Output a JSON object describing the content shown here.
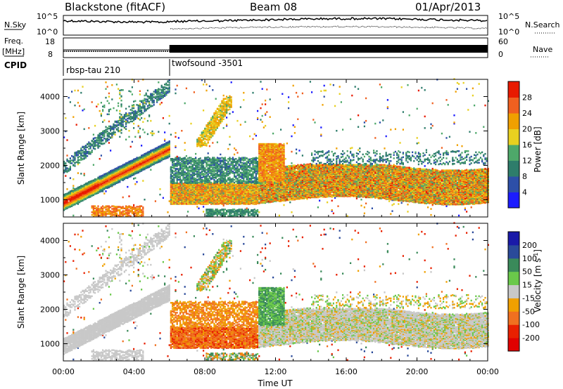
{
  "header": {
    "station": "Blackstone (fitACF)",
    "beam": "Beam 08",
    "date": "01/Apr/2013"
  },
  "noise_panel": {
    "left_label": "N.Sky",
    "right_label": "N.Search",
    "left_ticks": [
      "10^5",
      "10^0"
    ],
    "right_ticks": [
      "10^5",
      "10^0"
    ]
  },
  "freq_panel": {
    "left_label": "Freq.",
    "left_unit": "[MHz]",
    "right_label": "Nave",
    "left_ticks": [
      "18",
      "8"
    ],
    "right_ticks": [
      "60",
      "0"
    ],
    "freq_mhz": 10.5,
    "nave_before": 24,
    "nave_after_range": [
      0,
      30
    ]
  },
  "cpid": {
    "label": "CPID",
    "programs": [
      {
        "name": "rbsp-tau 210",
        "start_hour": 0
      },
      {
        "name": "twofsound -3501",
        "start_hour": 6
      }
    ]
  },
  "x_axis": {
    "label": "Time UT",
    "ticks": [
      "00:00",
      "04:00",
      "08:00",
      "12:00",
      "16:00",
      "20:00",
      "00:00"
    ],
    "range_hours": [
      0,
      24
    ]
  },
  "chart_data": [
    {
      "type": "heatmap",
      "ylabel": "Slant Range [km]",
      "xlabel": "",
      "yticks": [
        "1000",
        "2000",
        "3000",
        "4000"
      ],
      "ylim": [
        500,
        4500
      ],
      "colorbar": {
        "label": "Power [dB]",
        "ticks": [
          "4",
          "8",
          "12",
          "16",
          "20",
          "24",
          "28"
        ],
        "range": [
          0,
          32
        ],
        "colors": [
          "#1c1cff",
          "#2d4fa8",
          "#2e7d6b",
          "#4ea86a",
          "#e8d020",
          "#f0a000",
          "#f06020",
          "#e81a00"
        ]
      },
      "features": [
        {
          "t0": 0.0,
          "t1": 4.0,
          "r0": 900,
          "r1": 2400,
          "note": "ascending band"
        },
        {
          "t0": 6.0,
          "t1": 11.0,
          "r0": 900,
          "r1": 1400
        },
        {
          "t0": 11.5,
          "t1": 24.0,
          "r0": 1000,
          "r1": 1900
        }
      ]
    },
    {
      "type": "heatmap",
      "ylabel": "Slant Range [km]",
      "xlabel": "Time UT",
      "yticks": [
        "1000",
        "2000",
        "3000",
        "4000"
      ],
      "ylim": [
        500,
        4500
      ],
      "colorbar": {
        "label": "Velocity [m s^-1]",
        "label_main": "Velocity [m s",
        "label_sup": "-1",
        "ticks": [
          "200",
          "100",
          "50",
          "15",
          "-15",
          "-50",
          "-100",
          "-200"
        ],
        "colors": [
          "#1a1aa8",
          "#2a4a9a",
          "#3a8a5a",
          "#6ac84a",
          "#c8c8c8",
          "#f0a000",
          "#f07020",
          "#e82000",
          "#e00000"
        ]
      }
    }
  ]
}
